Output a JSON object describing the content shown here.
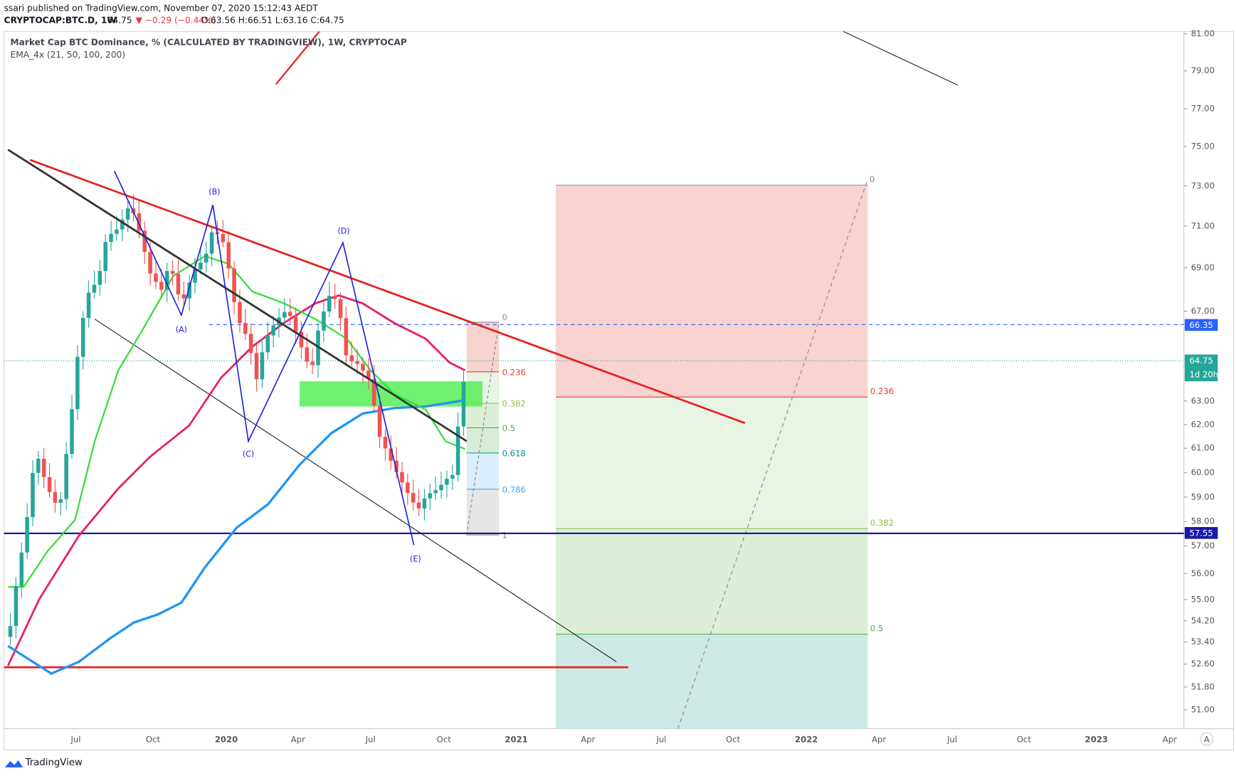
{
  "header": {
    "published": "ssari published on TradingView.com, November 07, 2020 15:12:43 AEDT"
  },
  "symbol_bar": {
    "symbol": "CRYPTOCAP:BTC.D, 1W",
    "last": "64.75",
    "change": "▼ −0.29 (−0.44%)",
    "ohlc": "O:63.56 H:66.51 L:63.16 C:64.75"
  },
  "legend": {
    "title": "Market Cap BTC Dominance, % (CALCULATED BY TRADINGVIEW), 1W, CRYPTOCAP",
    "indicator": "EMA_4x (21, 50, 100, 200)"
  },
  "price_axis": {
    "ticks": [
      "81.00",
      "79.00",
      "77.00",
      "75.00",
      "73.00",
      "71.00",
      "69.00",
      "67.00",
      "63.00",
      "62.00",
      "61.00",
      "60.00",
      "59.00",
      "58.00",
      "57.00",
      "56.00",
      "55.00",
      "54.20",
      "53.40",
      "52.60",
      "51.80",
      "51.00"
    ],
    "labels": {
      "dashed": "66.35",
      "last": "64.75",
      "countdown": "1d 20h",
      "support": "57.55"
    }
  },
  "time_axis": {
    "ticks": [
      "Jul",
      "Oct",
      "2020",
      "Apr",
      "Jul",
      "Oct",
      "2021",
      "Apr",
      "Jul",
      "Oct",
      "2022",
      "Apr",
      "Jul",
      "Oct",
      "2023",
      "Apr"
    ]
  },
  "annotations": {
    "points": [
      "(A)",
      "(B)",
      "(C)",
      "(D)",
      "(E)"
    ]
  },
  "fib_small": {
    "levels": [
      "0",
      "0.236",
      "0.382",
      "0.5",
      "0.618",
      "0.786",
      "1"
    ]
  },
  "fib_large": {
    "levels": [
      "0",
      "0.236",
      "0.382",
      "0.5"
    ]
  },
  "footer": {
    "brand": "TradingView",
    "axis_mode": "A"
  }
}
